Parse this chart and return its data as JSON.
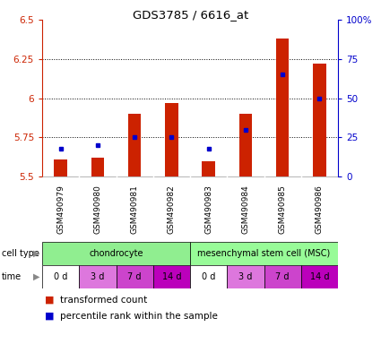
{
  "title": "GDS3785 / 6616_at",
  "samples": [
    "GSM490979",
    "GSM490980",
    "GSM490981",
    "GSM490982",
    "GSM490983",
    "GSM490984",
    "GSM490985",
    "GSM490986"
  ],
  "red_values": [
    5.61,
    5.62,
    5.9,
    5.97,
    5.6,
    5.9,
    6.38,
    6.22
  ],
  "blue_percentiles": [
    18,
    20,
    25,
    25,
    18,
    30,
    65,
    50
  ],
  "ymin": 5.5,
  "ymax": 6.5,
  "yticks": [
    5.5,
    5.75,
    6.0,
    6.25,
    6.5
  ],
  "ytick_labels": [
    "5.5",
    "5.75",
    "6",
    "6.25",
    "6.5"
  ],
  "right_yticks": [
    0,
    25,
    50,
    75,
    100
  ],
  "right_ytick_labels": [
    "0",
    "25",
    "50",
    "75",
    "100%"
  ],
  "cell_type_groups": [
    {
      "label": "chondrocyte",
      "start": 0,
      "end": 4,
      "color": "#90EE90"
    },
    {
      "label": "mesenchymal stem cell (MSC)",
      "start": 4,
      "end": 8,
      "color": "#98FB98"
    }
  ],
  "time_labels": [
    "0 d",
    "3 d",
    "7 d",
    "14 d",
    "0 d",
    "3 d",
    "7 d",
    "14 d"
  ],
  "time_colors": [
    "#FFFFFF",
    "#DD77DD",
    "#CC44CC",
    "#BB00BB",
    "#FFFFFF",
    "#DD77DD",
    "#CC44CC",
    "#BB00BB"
  ],
  "bar_color": "#CC2200",
  "marker_color": "#0000CC",
  "bar_width": 0.35,
  "left_axis_color": "#CC2200",
  "right_axis_color": "#0000CC",
  "background_chart": "#FFFFFF",
  "background_sample": "#C8C8C8"
}
